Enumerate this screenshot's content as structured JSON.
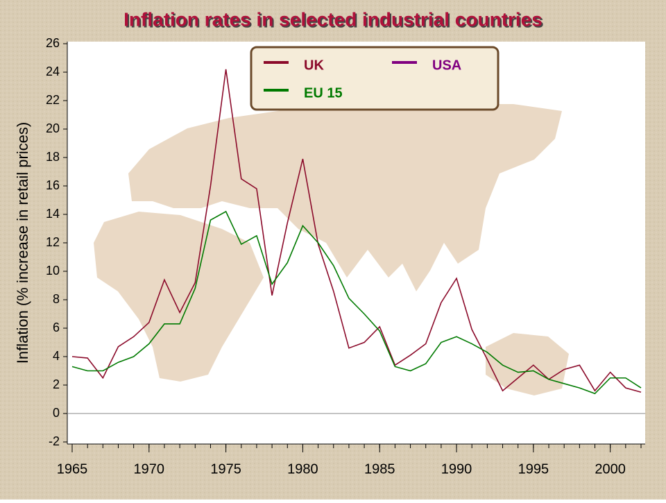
{
  "chart_data": {
    "type": "line",
    "title": "Inflation rates in selected industrial countries",
    "y_label": "Inflation (% increase in retail prices)",
    "x": [
      1965,
      1966,
      1967,
      1968,
      1969,
      1970,
      1971,
      1972,
      1973,
      1974,
      1975,
      1976,
      1977,
      1978,
      1979,
      1980,
      1981,
      1982,
      1983,
      1984,
      1985,
      1986,
      1987,
      1988,
      1989,
      1990,
      1991,
      1992,
      1993,
      1994,
      1995,
      1996,
      1997,
      1998,
      1999,
      2000,
      2001,
      2002
    ],
    "series": [
      {
        "name": "UK",
        "color": "#8b0a2a",
        "values": [
          4.0,
          3.9,
          2.5,
          4.7,
          5.4,
          6.4,
          9.4,
          7.1,
          9.2,
          16.0,
          24.2,
          16.5,
          15.8,
          8.3,
          13.4,
          17.9,
          11.9,
          8.6,
          4.6,
          5.0,
          6.1,
          3.4,
          4.1,
          4.9,
          7.8,
          9.5,
          5.9,
          3.8,
          1.6,
          2.5,
          3.4,
          2.4,
          3.1,
          3.4,
          1.6,
          2.9,
          1.8,
          1.5
        ]
      },
      {
        "name": "USA",
        "color": "#800080",
        "values": [
          null,
          null,
          null,
          null,
          null,
          null,
          null,
          null,
          null,
          null,
          null,
          null,
          null,
          null,
          null,
          null,
          null,
          null,
          null,
          null,
          null,
          null,
          null,
          null,
          null,
          null,
          null,
          null,
          null,
          null,
          null,
          null,
          null,
          null,
          null,
          null,
          null,
          null
        ]
      },
      {
        "name": "EU 15",
        "color": "#007a00",
        "values": [
          3.3,
          3.0,
          3.0,
          3.6,
          4.0,
          4.9,
          6.3,
          6.3,
          8.8,
          13.6,
          14.2,
          11.9,
          12.5,
          9.1,
          10.6,
          13.2,
          12.0,
          10.4,
          8.1,
          7.0,
          5.8,
          3.3,
          3.0,
          3.5,
          5.0,
          5.4,
          4.9,
          4.3,
          3.4,
          2.9,
          3.0,
          2.4,
          2.1,
          1.8,
          1.4,
          2.5,
          2.5,
          1.8
        ]
      }
    ],
    "xlim": [
      1965,
      2002
    ],
    "xticks": [
      1965,
      1970,
      1975,
      1980,
      1985,
      1990,
      1995,
      2000
    ],
    "ylim": [
      -2,
      26
    ],
    "yticks": [
      -2,
      0,
      2,
      4,
      6,
      8,
      10,
      12,
      14,
      16,
      18,
      20,
      22,
      24,
      26
    ]
  }
}
